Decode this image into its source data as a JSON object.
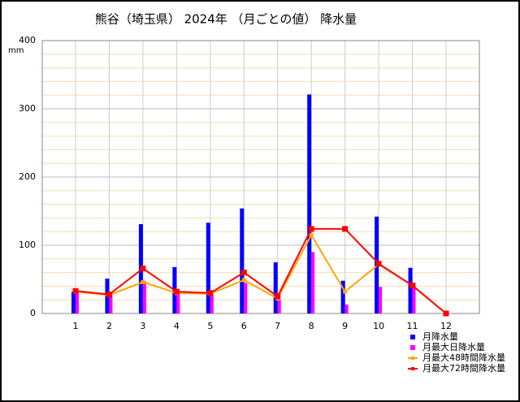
{
  "chart_data": {
    "type": "bar_line",
    "title": "熊谷（埼玉県） 2024年 （月ごとの値） 降水量",
    "y_unit": "mm",
    "categories": [
      "1",
      "2",
      "3",
      "4",
      "5",
      "6",
      "7",
      "8",
      "9",
      "10",
      "11",
      "12"
    ],
    "series": [
      {
        "name": "月降水量",
        "kind": "bar",
        "color": "#0000ff",
        "values": [
          32,
          51,
          131,
          68,
          133,
          154,
          75,
          321,
          48,
          142,
          67,
          0
        ]
      },
      {
        "name": "月最大日降水量",
        "kind": "bar",
        "color": "#ff00ff",
        "values": [
          31,
          27,
          47,
          28,
          27,
          45,
          20,
          90,
          13,
          39,
          45,
          0
        ]
      },
      {
        "name": "月最大48時間降水量",
        "kind": "line",
        "color": "#ffa500",
        "values": [
          32,
          27,
          46,
          30,
          29,
          49,
          22,
          115,
          32,
          72,
          41,
          0
        ]
      },
      {
        "name": "月最大72時間降水量",
        "kind": "line",
        "color": "#ff0000",
        "values": [
          33,
          28,
          66,
          32,
          30,
          60,
          25,
          124,
          124,
          73,
          41,
          0
        ]
      }
    ],
    "ylim": [
      0,
      400
    ],
    "yticks": [
      0,
      100,
      200,
      300,
      400
    ],
    "grid": true,
    "legend": "bottom-right"
  }
}
